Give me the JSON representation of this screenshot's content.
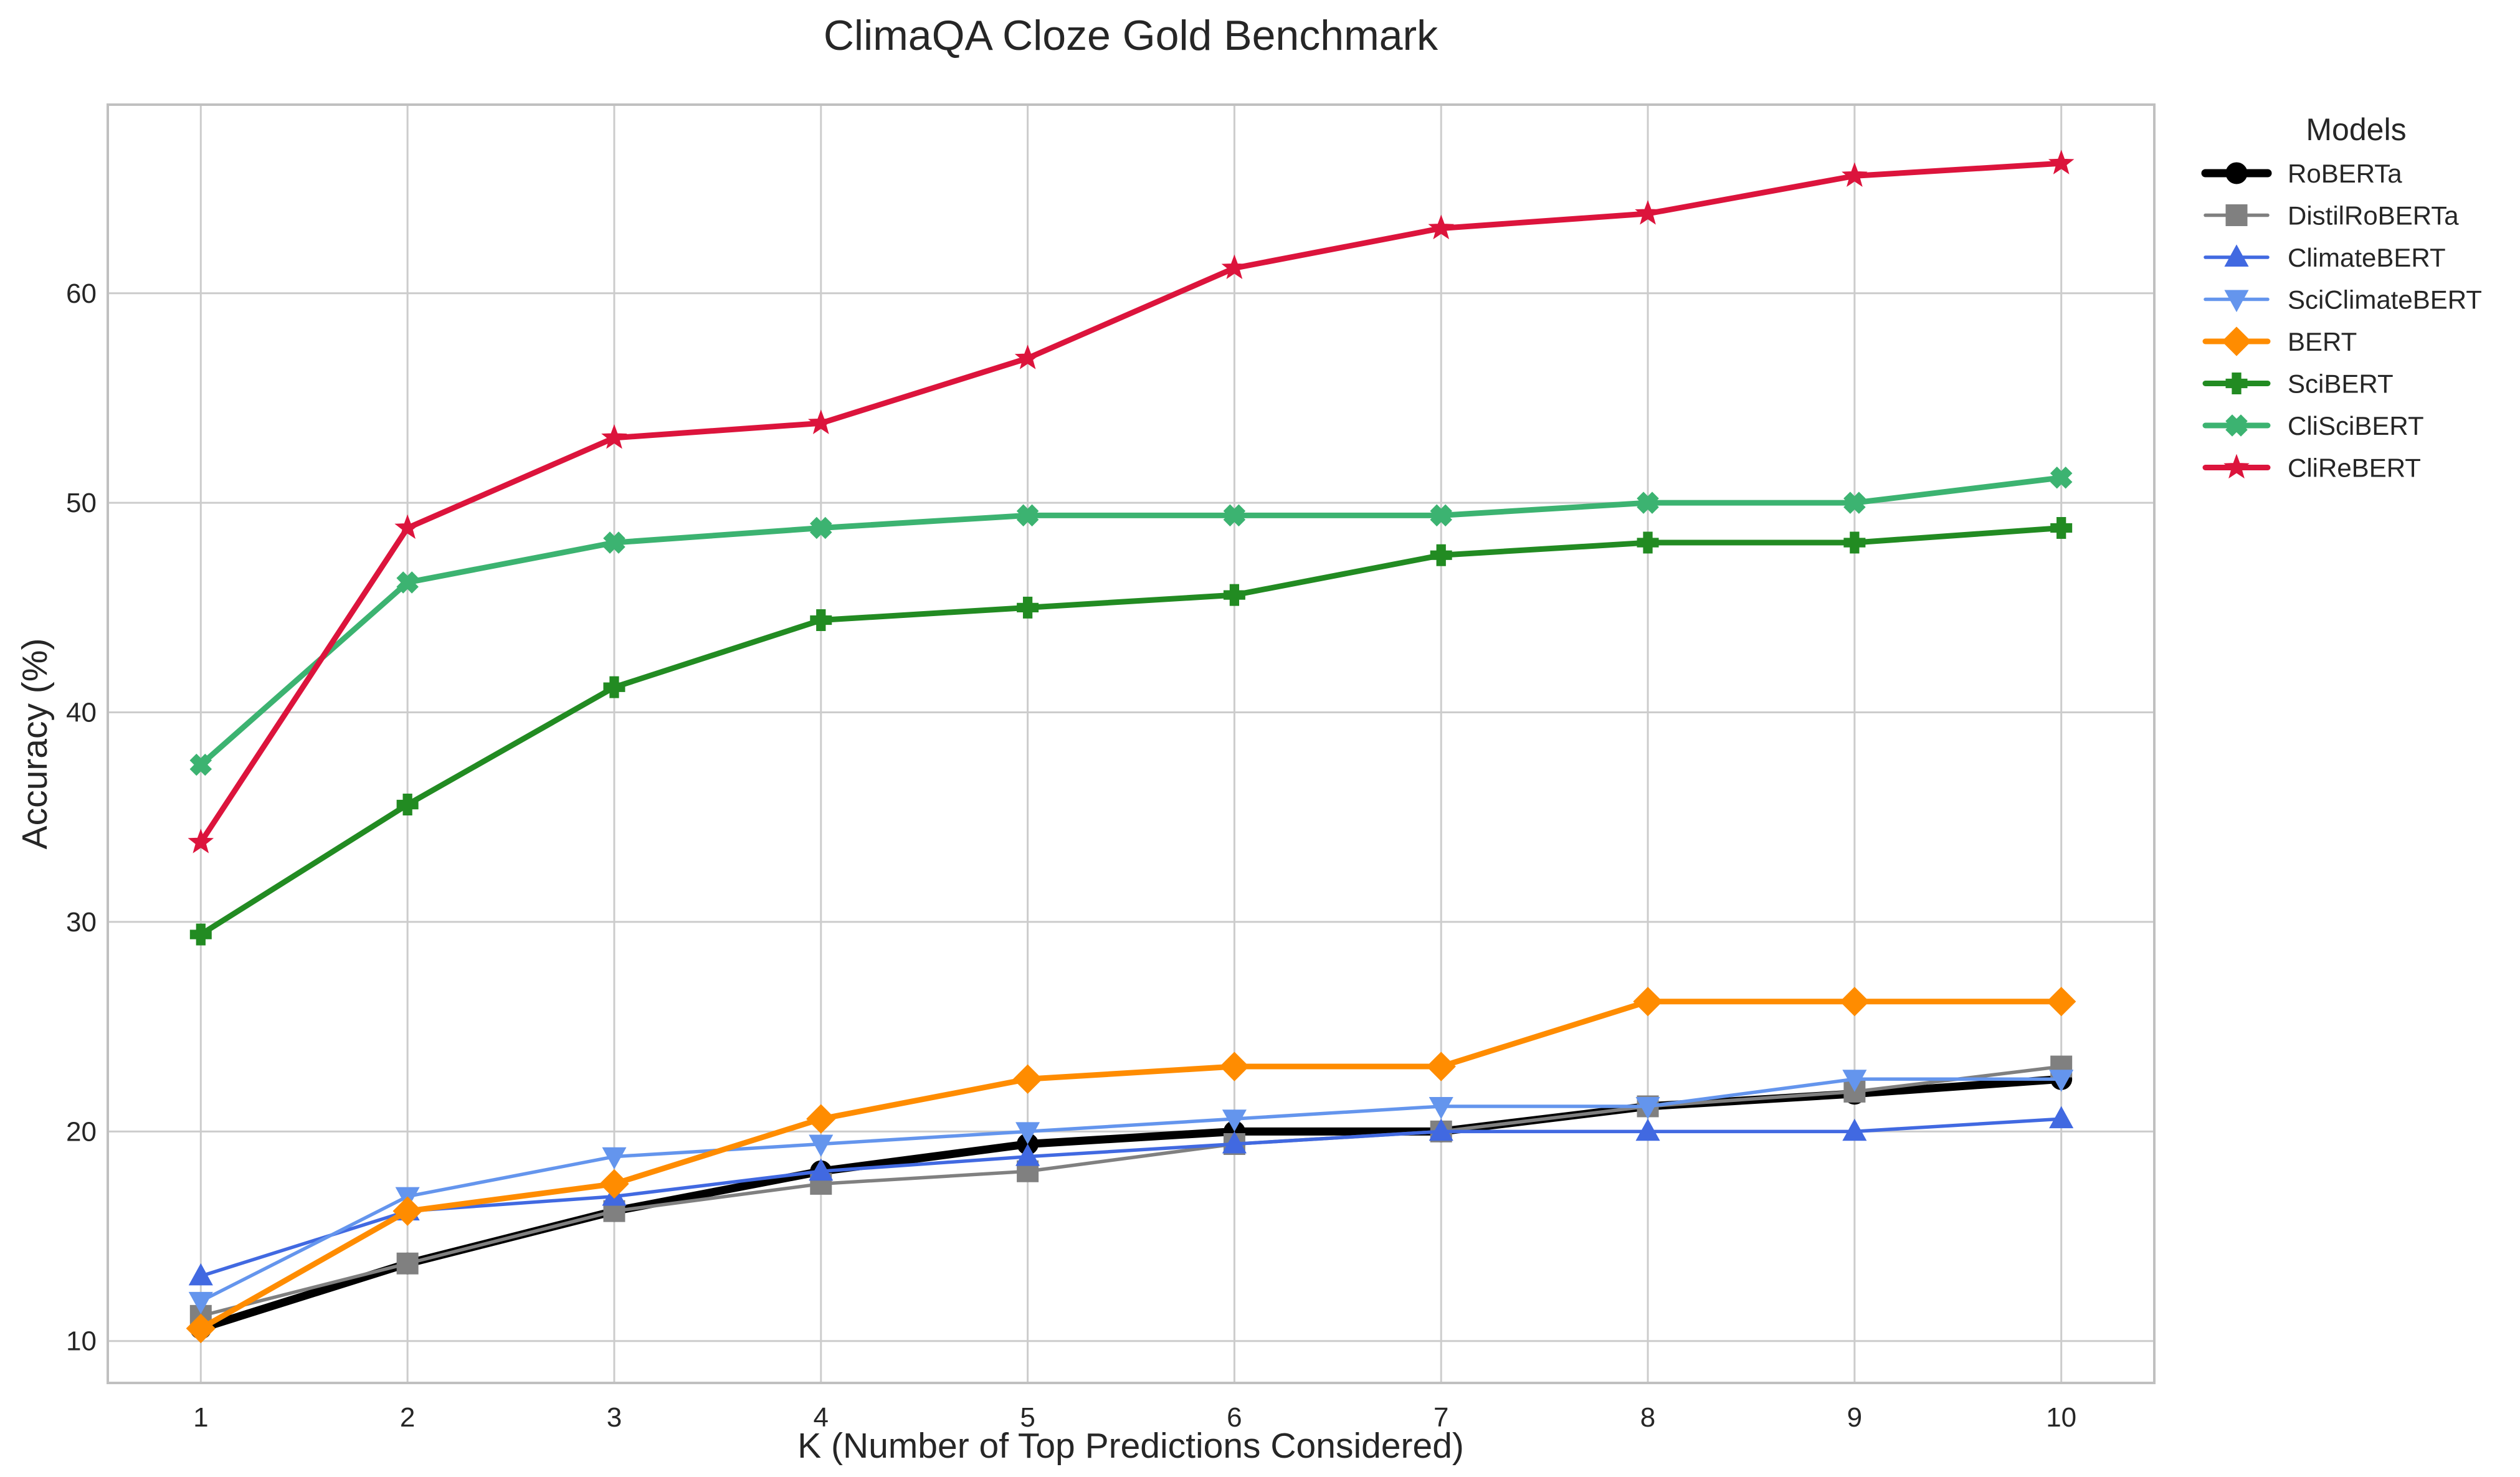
{
  "chart_data": {
    "type": "line",
    "title": "ClimaQA Cloze Gold Benchmark",
    "xlabel": "K (Number of Top Predictions Considered)",
    "ylabel": "Accuracy (%)",
    "x": [
      1,
      2,
      3,
      4,
      5,
      6,
      7,
      8,
      9,
      10
    ],
    "xlim": [
      0.55,
      10.45
    ],
    "ylim": [
      8,
      69
    ],
    "yticks": [
      10,
      20,
      30,
      40,
      50,
      60
    ],
    "grid": true,
    "legend": {
      "title": "Models",
      "placement": "outside-top-right"
    },
    "series": [
      {
        "name": "RoBERTa",
        "color": "#000000",
        "marker": "circle",
        "width": "thick",
        "values": [
          10.6,
          13.7,
          16.2,
          18.1,
          19.4,
          20.0,
          20.0,
          21.2,
          21.8,
          22.5
        ]
      },
      {
        "name": "DistilRoBERTa",
        "color": "#808080",
        "marker": "square",
        "width": "thin",
        "values": [
          11.2,
          13.7,
          16.2,
          17.5,
          18.1,
          19.4,
          20.0,
          21.2,
          21.9,
          23.1
        ]
      },
      {
        "name": "ClimateBERT",
        "color": "#4169e1",
        "marker": "triangle-up",
        "width": "thin",
        "values": [
          13.1,
          16.2,
          16.9,
          18.1,
          18.8,
          19.4,
          20.0,
          20.0,
          20.0,
          20.6
        ]
      },
      {
        "name": "SciClimateBERT",
        "color": "#6495ed",
        "marker": "triangle-down",
        "width": "thin",
        "values": [
          11.9,
          16.9,
          18.8,
          19.4,
          20.0,
          20.6,
          21.2,
          21.2,
          22.5,
          22.5
        ]
      },
      {
        "name": "BERT",
        "color": "#ff8c00",
        "marker": "diamond",
        "width": "medium",
        "values": [
          10.6,
          16.2,
          17.5,
          20.6,
          22.5,
          23.1,
          23.1,
          26.2,
          26.2,
          26.2
        ]
      },
      {
        "name": "SciBERT",
        "color": "#228b22",
        "marker": "plus",
        "width": "medium",
        "values": [
          29.4,
          35.6,
          41.2,
          44.4,
          45.0,
          45.6,
          47.5,
          48.1,
          48.1,
          48.8
        ]
      },
      {
        "name": "CliSciBERT",
        "color": "#3cb371",
        "marker": "x",
        "width": "medium",
        "values": [
          37.5,
          46.2,
          48.1,
          48.8,
          49.4,
          49.4,
          49.4,
          50.0,
          50.0,
          51.2
        ]
      },
      {
        "name": "CliReBERT",
        "color": "#dc143c",
        "marker": "star",
        "width": "medium",
        "values": [
          33.8,
          48.8,
          53.1,
          53.8,
          56.9,
          61.2,
          63.1,
          63.8,
          65.6,
          66.2
        ]
      }
    ]
  }
}
